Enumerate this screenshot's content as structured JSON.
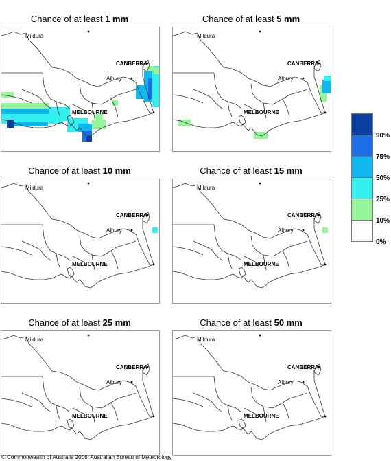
{
  "panels": [
    {
      "prefix": "Chance of at least ",
      "amount": "1 mm"
    },
    {
      "prefix": "Chance of at least ",
      "amount": "5 mm"
    },
    {
      "prefix": "Chance of at least ",
      "amount": "10 mm"
    },
    {
      "prefix": "Chance of at least ",
      "amount": "15 mm"
    },
    {
      "prefix": "Chance of at least ",
      "amount": "25 mm"
    },
    {
      "prefix": "Chance of at least ",
      "amount": "50 mm"
    }
  ],
  "places": {
    "mildura": "Mildura",
    "canberra": "CANBERRA",
    "albury": "Albury",
    "melbourne": "MELBOURNE"
  },
  "legend": {
    "labels": [
      "90%",
      "75%",
      "50%",
      "25%",
      "10%",
      "0%"
    ],
    "colors": [
      "#0b3fa0",
      "#1c6fe6",
      "#10b6ee",
      "#33f0f0",
      "#96f59a",
      "#ffffff"
    ]
  },
  "footer": "© Commonwealth of Australia 2006, Australian Bureau of Meteorology"
}
